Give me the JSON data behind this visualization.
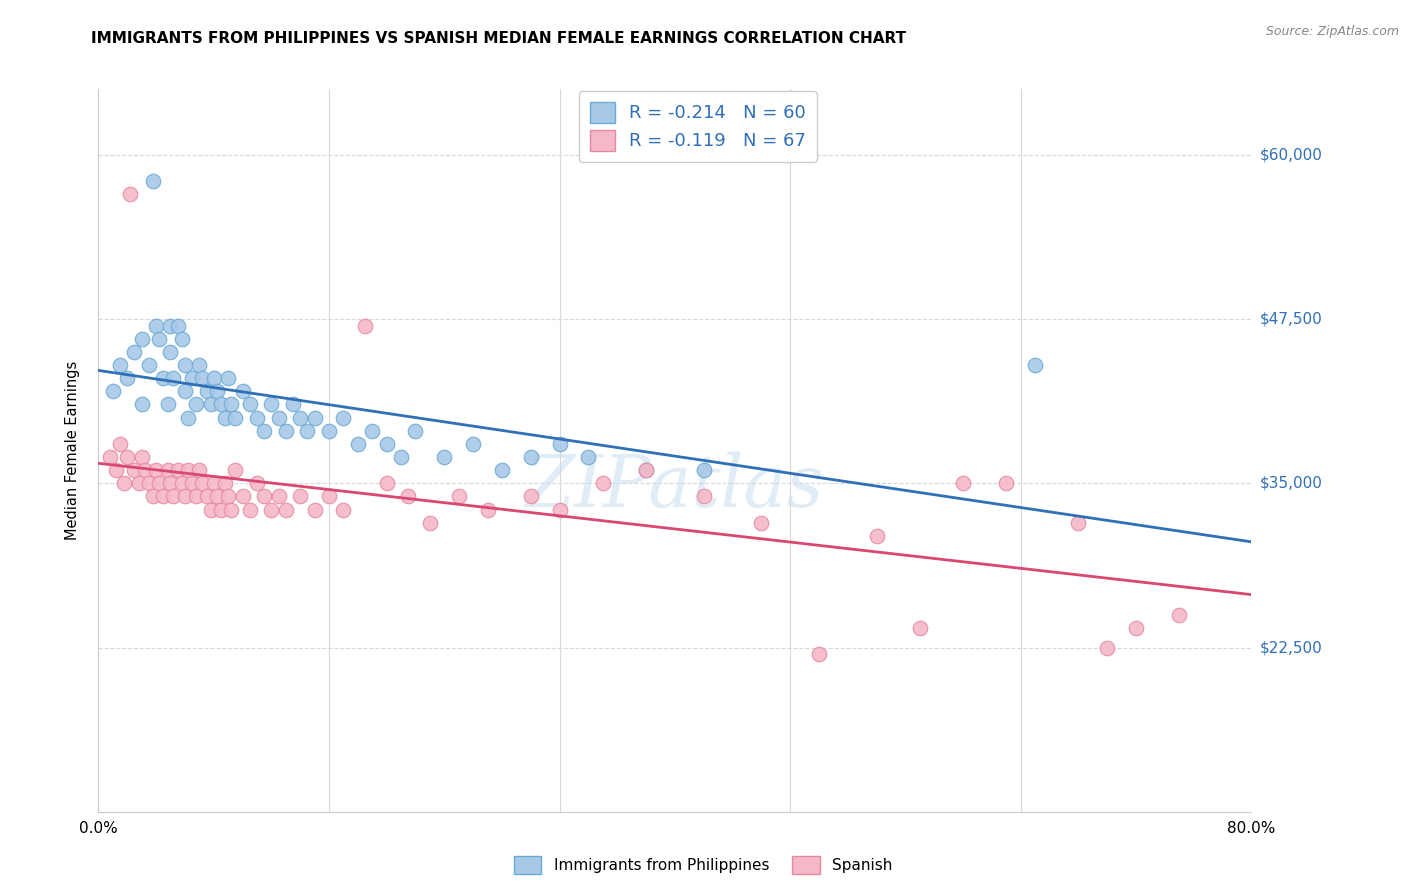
{
  "title": "IMMIGRANTS FROM PHILIPPINES VS SPANISH MEDIAN FEMALE EARNINGS CORRELATION CHART",
  "source": "Source: ZipAtlas.com",
  "ylabel": "Median Female Earnings",
  "yticks": [
    22500,
    35000,
    47500,
    60000
  ],
  "ytick_labels": [
    "$22,500",
    "$35,000",
    "$47,500",
    "$60,000"
  ],
  "xmin": 0.0,
  "xmax": 0.8,
  "ymin": 10000,
  "ymax": 65000,
  "legend_label1": "Immigrants from Philippines",
  "legend_label2": "Spanish",
  "R1": -0.214,
  "N1": 60,
  "R2": -0.119,
  "N2": 67,
  "color1": "#a8c8e8",
  "color1_edge": "#6aaad4",
  "color2": "#f5b8c8",
  "color2_edge": "#e888a0",
  "trendline1_color": "#3070b8",
  "trendline2_color": "#d84870",
  "background_color": "#ffffff",
  "grid_color": "#d8d8d8",
  "watermark": "ZIPatlas",
  "scatter1_x": [
    0.01,
    0.015,
    0.02,
    0.025,
    0.03,
    0.03,
    0.035,
    0.038,
    0.04,
    0.042,
    0.045,
    0.048,
    0.05,
    0.05,
    0.052,
    0.055,
    0.058,
    0.06,
    0.06,
    0.062,
    0.065,
    0.068,
    0.07,
    0.072,
    0.075,
    0.078,
    0.08,
    0.082,
    0.085,
    0.088,
    0.09,
    0.092,
    0.095,
    0.1,
    0.105,
    0.11,
    0.115,
    0.12,
    0.125,
    0.13,
    0.135,
    0.14,
    0.145,
    0.15,
    0.16,
    0.17,
    0.18,
    0.19,
    0.2,
    0.21,
    0.22,
    0.24,
    0.26,
    0.28,
    0.3,
    0.32,
    0.34,
    0.38,
    0.42,
    0.65
  ],
  "scatter1_y": [
    42000,
    44000,
    43000,
    45000,
    46000,
    41000,
    44000,
    58000,
    47000,
    46000,
    43000,
    41000,
    47000,
    45000,
    43000,
    47000,
    46000,
    44000,
    42000,
    40000,
    43000,
    41000,
    44000,
    43000,
    42000,
    41000,
    43000,
    42000,
    41000,
    40000,
    43000,
    41000,
    40000,
    42000,
    41000,
    40000,
    39000,
    41000,
    40000,
    39000,
    41000,
    40000,
    39000,
    40000,
    39000,
    40000,
    38000,
    39000,
    38000,
    37000,
    39000,
    37000,
    38000,
    36000,
    37000,
    38000,
    37000,
    36000,
    36000,
    44000
  ],
  "scatter2_x": [
    0.008,
    0.012,
    0.015,
    0.018,
    0.02,
    0.022,
    0.025,
    0.028,
    0.03,
    0.032,
    0.035,
    0.038,
    0.04,
    0.042,
    0.045,
    0.048,
    0.05,
    0.052,
    0.055,
    0.058,
    0.06,
    0.062,
    0.065,
    0.068,
    0.07,
    0.072,
    0.075,
    0.078,
    0.08,
    0.082,
    0.085,
    0.088,
    0.09,
    0.092,
    0.095,
    0.1,
    0.105,
    0.11,
    0.115,
    0.12,
    0.125,
    0.13,
    0.14,
    0.15,
    0.16,
    0.17,
    0.185,
    0.2,
    0.215,
    0.23,
    0.25,
    0.27,
    0.3,
    0.32,
    0.35,
    0.38,
    0.42,
    0.46,
    0.5,
    0.54,
    0.57,
    0.6,
    0.63,
    0.68,
    0.7,
    0.72,
    0.75
  ],
  "scatter2_y": [
    37000,
    36000,
    38000,
    35000,
    37000,
    57000,
    36000,
    35000,
    37000,
    36000,
    35000,
    34000,
    36000,
    35000,
    34000,
    36000,
    35000,
    34000,
    36000,
    35000,
    34000,
    36000,
    35000,
    34000,
    36000,
    35000,
    34000,
    33000,
    35000,
    34000,
    33000,
    35000,
    34000,
    33000,
    36000,
    34000,
    33000,
    35000,
    34000,
    33000,
    34000,
    33000,
    34000,
    33000,
    34000,
    33000,
    47000,
    35000,
    34000,
    32000,
    34000,
    33000,
    34000,
    33000,
    35000,
    36000,
    34000,
    32000,
    22000,
    31000,
    24000,
    35000,
    35000,
    32000,
    22500,
    24000,
    25000
  ],
  "figsize": [
    14.06,
    8.92
  ],
  "dpi": 100
}
